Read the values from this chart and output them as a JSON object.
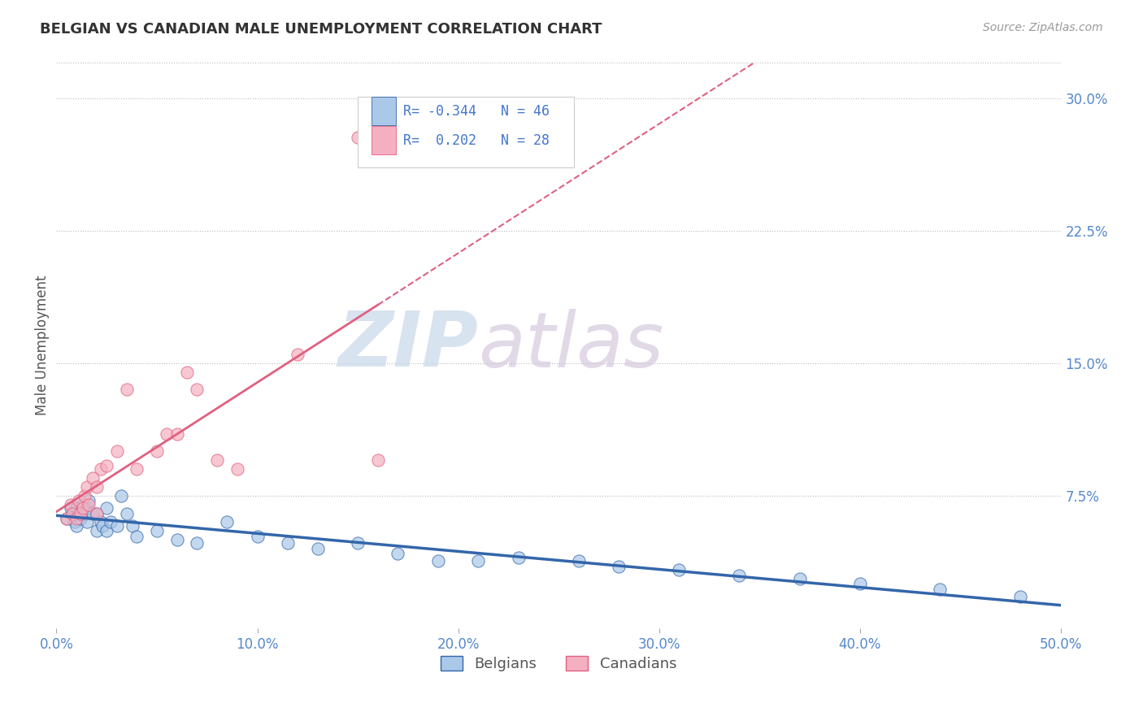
{
  "title": "BELGIAN VS CANADIAN MALE UNEMPLOYMENT CORRELATION CHART",
  "source_text": "Source: ZipAtlas.com",
  "ylabel": "Male Unemployment",
  "xlim": [
    0.0,
    0.5
  ],
  "ylim": [
    0.0,
    0.32
  ],
  "xtick_labels": [
    "0.0%",
    "10.0%",
    "20.0%",
    "30.0%",
    "40.0%",
    "50.0%"
  ],
  "xtick_vals": [
    0.0,
    0.1,
    0.2,
    0.3,
    0.4,
    0.5
  ],
  "ytick_labels": [
    "7.5%",
    "15.0%",
    "22.5%",
    "30.0%"
  ],
  "ytick_vals": [
    0.075,
    0.15,
    0.225,
    0.3
  ],
  "belgians_color": "#aac8e8",
  "canadians_color": "#f4b0c0",
  "trend_belgian_color": "#3366aa",
  "trend_canadian_color": "#e06080",
  "background_color": "#ffffff",
  "grid_color": "#bbbbbb",
  "legend_label_belgian": "Belgians",
  "legend_label_canadian": "Canadians",
  "R_belgian": -0.344,
  "N_belgian": 46,
  "R_canadian": 0.202,
  "N_canadian": 28,
  "belgians_x": [
    0.005,
    0.007,
    0.008,
    0.009,
    0.01,
    0.01,
    0.011,
    0.012,
    0.013,
    0.014,
    0.015,
    0.015,
    0.016,
    0.018,
    0.02,
    0.02,
    0.022,
    0.023,
    0.025,
    0.025,
    0.027,
    0.03,
    0.032,
    0.035,
    0.038,
    0.04,
    0.05,
    0.06,
    0.07,
    0.085,
    0.1,
    0.115,
    0.13,
    0.15,
    0.17,
    0.19,
    0.21,
    0.23,
    0.26,
    0.28,
    0.31,
    0.34,
    0.37,
    0.4,
    0.44,
    0.48
  ],
  "belgians_y": [
    0.062,
    0.068,
    0.065,
    0.06,
    0.068,
    0.058,
    0.065,
    0.062,
    0.07,
    0.065,
    0.068,
    0.06,
    0.072,
    0.065,
    0.065,
    0.055,
    0.06,
    0.058,
    0.068,
    0.055,
    0.06,
    0.058,
    0.075,
    0.065,
    0.058,
    0.052,
    0.055,
    0.05,
    0.048,
    0.06,
    0.052,
    0.048,
    0.045,
    0.048,
    0.042,
    0.038,
    0.038,
    0.04,
    0.038,
    0.035,
    0.033,
    0.03,
    0.028,
    0.025,
    0.022,
    0.018
  ],
  "canadians_x": [
    0.005,
    0.007,
    0.008,
    0.01,
    0.011,
    0.012,
    0.013,
    0.014,
    0.015,
    0.016,
    0.018,
    0.02,
    0.02,
    0.022,
    0.025,
    0.03,
    0.035,
    0.04,
    0.05,
    0.055,
    0.06,
    0.065,
    0.07,
    0.08,
    0.09,
    0.12,
    0.15,
    0.16
  ],
  "canadians_y": [
    0.062,
    0.07,
    0.065,
    0.062,
    0.072,
    0.065,
    0.068,
    0.075,
    0.08,
    0.07,
    0.085,
    0.08,
    0.065,
    0.09,
    0.092,
    0.1,
    0.135,
    0.09,
    0.1,
    0.11,
    0.11,
    0.145,
    0.135,
    0.095,
    0.09,
    0.155,
    0.278,
    0.095
  ],
  "watermark_zip": "ZIP",
  "watermark_atlas": "atlas",
  "title_color": "#333333",
  "axis_label_color": "#555555",
  "tick_color": "#5588cc",
  "legend_r_color": "#4477cc",
  "watermark_zip_color": "#c8d8ea",
  "watermark_atlas_color": "#d0c0d8"
}
